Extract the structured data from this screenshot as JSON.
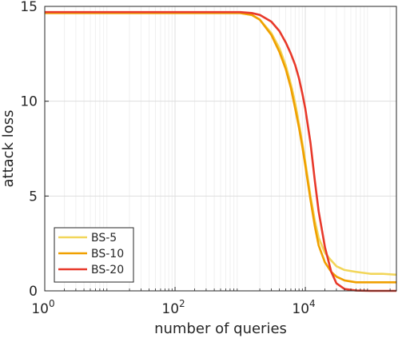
{
  "chart_data": {
    "type": "line",
    "xscale": "log",
    "xlabel": "number of queries",
    "ylabel": "attack loss",
    "xlim": [
      1,
      250000
    ],
    "ylim": [
      0,
      15
    ],
    "x_ticks": [
      {
        "value": 1,
        "base": "10",
        "exp": "0"
      },
      {
        "value": 100,
        "base": "10",
        "exp": "2"
      },
      {
        "value": 10000,
        "base": "10",
        "exp": "4"
      }
    ],
    "y_ticks": [
      0,
      5,
      10,
      15
    ],
    "grid": true,
    "legend": {
      "placement": "bottom-left"
    },
    "series": [
      {
        "name": "BS-5",
        "color": "#f2d65a",
        "points": [
          [
            1,
            14.65
          ],
          [
            1000,
            14.65
          ],
          [
            1500,
            14.55
          ],
          [
            2000,
            14.3
          ],
          [
            3000,
            13.6
          ],
          [
            4000,
            12.8
          ],
          [
            5000,
            11.9
          ],
          [
            6000,
            10.9
          ],
          [
            7000,
            9.9
          ],
          [
            8000,
            8.8
          ],
          [
            9000,
            7.8
          ],
          [
            10000,
            6.8
          ],
          [
            12000,
            5.0
          ],
          [
            14000,
            3.7
          ],
          [
            16000,
            2.8
          ],
          [
            20000,
            2.0
          ],
          [
            25000,
            1.6
          ],
          [
            30000,
            1.3
          ],
          [
            40000,
            1.1
          ],
          [
            60000,
            1.0
          ],
          [
            100000,
            0.9
          ],
          [
            150000,
            0.9
          ],
          [
            250000,
            0.85
          ]
        ]
      },
      {
        "name": "BS-10",
        "color": "#f0a000",
        "points": [
          [
            1,
            14.65
          ],
          [
            1000,
            14.65
          ],
          [
            1500,
            14.55
          ],
          [
            2000,
            14.3
          ],
          [
            3000,
            13.5
          ],
          [
            4000,
            12.6
          ],
          [
            5000,
            11.7
          ],
          [
            6000,
            10.7
          ],
          [
            7000,
            9.6
          ],
          [
            8000,
            8.6
          ],
          [
            9000,
            7.6
          ],
          [
            10000,
            6.6
          ],
          [
            12000,
            4.8
          ],
          [
            14000,
            3.4
          ],
          [
            16000,
            2.4
          ],
          [
            20000,
            1.5
          ],
          [
            25000,
            1.0
          ],
          [
            30000,
            0.75
          ],
          [
            40000,
            0.55
          ],
          [
            60000,
            0.45
          ],
          [
            100000,
            0.45
          ],
          [
            150000,
            0.45
          ],
          [
            250000,
            0.45
          ]
        ]
      },
      {
        "name": "BS-20",
        "color": "#e8392a",
        "points": [
          [
            1,
            14.7
          ],
          [
            1000,
            14.7
          ],
          [
            1500,
            14.65
          ],
          [
            2000,
            14.55
          ],
          [
            3000,
            14.2
          ],
          [
            4000,
            13.7
          ],
          [
            5000,
            13.1
          ],
          [
            6000,
            12.5
          ],
          [
            7000,
            11.9
          ],
          [
            8000,
            11.2
          ],
          [
            9000,
            10.4
          ],
          [
            10000,
            9.6
          ],
          [
            12000,
            7.8
          ],
          [
            14000,
            5.8
          ],
          [
            16000,
            4.2
          ],
          [
            20000,
            2.3
          ],
          [
            25000,
            1.0
          ],
          [
            30000,
            0.4
          ],
          [
            40000,
            0.1
          ],
          [
            60000,
            0.02
          ],
          [
            100000,
            0.0
          ],
          [
            250000,
            0.0
          ]
        ]
      }
    ]
  }
}
